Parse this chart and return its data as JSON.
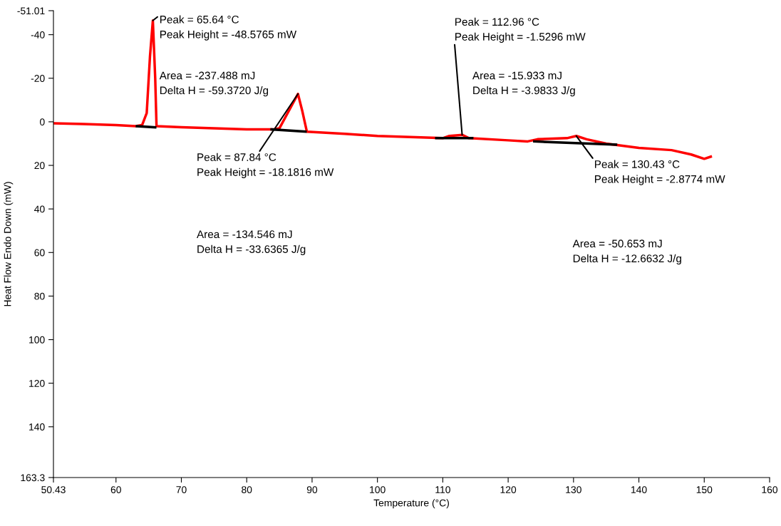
{
  "chart_data": {
    "type": "line",
    "xlabel": "Temperature (°C)",
    "ylabel": "Heat Flow Endo Down (mW)",
    "xlim": [
      50.43,
      160
    ],
    "ylim": [
      163.3,
      -51.01
    ],
    "xticks": [
      50.43,
      60,
      70,
      80,
      90,
      100,
      110,
      120,
      130,
      140,
      150,
      160
    ],
    "yticks": [
      -51.01,
      -40,
      -20,
      0,
      20,
      40,
      60,
      80,
      100,
      120,
      140,
      163.3
    ],
    "grid": false,
    "marker": "none",
    "line_style": "solid",
    "series": [
      {
        "color": "#ff0000",
        "x": [
          50.5,
          55,
          60,
          63,
          64,
          64.7,
          65.2,
          65.64,
          66,
          66.2,
          70,
          80,
          84,
          85,
          87.84,
          88.5,
          89.2,
          95,
          100,
          110,
          111,
          113,
          114,
          120,
          123,
          124.5,
          129,
          130.43,
          132,
          135,
          140,
          145,
          148,
          150,
          151
        ],
        "values": [
          0.7,
          1,
          1.5,
          2,
          1.5,
          -4,
          -30,
          -46.5,
          -20,
          2,
          2.5,
          3.5,
          3.5,
          3,
          -12.8,
          -5,
          4.5,
          5.5,
          6.5,
          7.5,
          6.5,
          6,
          7.5,
          8.5,
          9,
          8,
          7.5,
          6.5,
          8,
          10,
          12,
          13,
          15,
          17,
          16
        ]
      },
      {
        "color": "#000000",
        "x": [
          63.2,
          66
        ],
        "values": [
          2,
          2.5
        ]
      },
      {
        "color": "#000000",
        "x": [
          83.8,
          89
        ],
        "values": [
          3.5,
          4.5
        ]
      },
      {
        "color": "#000000",
        "x": [
          109,
          114.5
        ],
        "values": [
          7.5,
          7.5
        ]
      },
      {
        "color": "#000000",
        "x": [
          124,
          136.5
        ],
        "values": [
          9,
          10.5
        ]
      }
    ],
    "annotations": [
      {
        "text": "Peak = 65.64 °C\nPeak Height = -48.5765 mW",
        "x": 65.64,
        "y": -46.5
      },
      "Area = -237.488 mJ\nDelta H = -59.3720 J/g",
      {
        "text": "Peak = 87.84 °C\nPeak Height = -18.1816 mW",
        "x": 87.84,
        "y": -12.8
      },
      "Area = -134.546 mJ\nDelta H = -33.6365 J/g",
      {
        "text": "Peak = 112.96 °C\nPeak Height = -1.5296 mW",
        "x": 112.96,
        "y": 6
      },
      "Area = -15.933 mJ\nDelta H = -3.9833 J/g",
      {
        "text": "Peak = 130.43 °C\nPeak Height = -2.8774 mW",
        "x": 130.43,
        "y": 6.5
      },
      "Area = -50.653 mJ\nDelta H = -12.6632 J/g"
    ]
  }
}
